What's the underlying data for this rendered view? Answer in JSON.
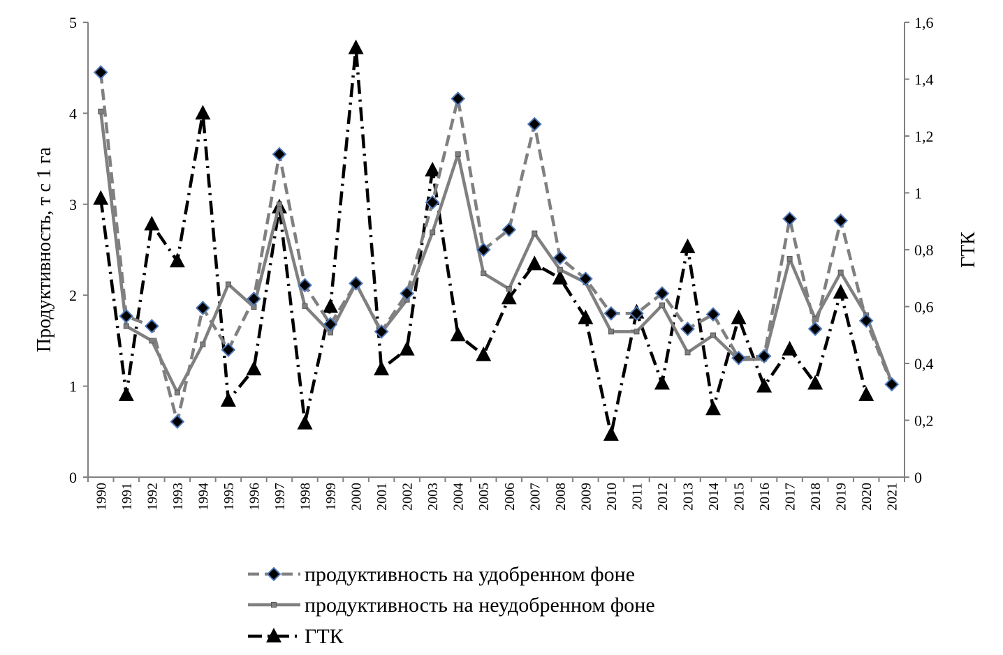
{
  "chart_data": {
    "type": "line",
    "title": "",
    "xlabel": "",
    "ylabel": "Продуктивность, т с 1 га",
    "y2label": "ГТК",
    "ylim": [
      0,
      5
    ],
    "y2lim": [
      0,
      1.6
    ],
    "yticks": [
      "0",
      "1",
      "2",
      "3",
      "4",
      "5"
    ],
    "y2ticks": [
      "0",
      "0,2",
      "0,4",
      "0,6",
      "0,8",
      "1",
      "1,2",
      "1,4",
      "1,6"
    ],
    "grid": false,
    "legend_position": "bottom",
    "categories": [
      "1990",
      "1991",
      "1992",
      "1993",
      "1994",
      "1995",
      "1996",
      "1997",
      "1998",
      "1999",
      "2000",
      "2001",
      "2002",
      "2003",
      "2004",
      "2005",
      "2006",
      "2007",
      "2008",
      "2009",
      "2010",
      "2011",
      "2012",
      "2013",
      "2014",
      "2015",
      "2016",
      "2017",
      "2018",
      "2019",
      "2020",
      "2021"
    ],
    "series": [
      {
        "name": "продуктивность на удобренном фоне",
        "axis": "left",
        "color": "#808080",
        "style": "dashed",
        "marker": "diamond",
        "values": [
          4.45,
          1.77,
          1.66,
          0.61,
          1.86,
          1.4,
          1.96,
          3.55,
          2.11,
          1.68,
          2.13,
          1.6,
          2.02,
          3.02,
          4.16,
          2.5,
          2.72,
          3.88,
          2.41,
          2.18,
          1.8,
          1.8,
          2.02,
          1.63,
          1.79,
          1.31,
          1.33,
          2.84,
          1.63,
          2.82,
          1.72,
          1.02
        ]
      },
      {
        "name": "продуктивность на неудобренном фоне",
        "axis": "left",
        "color": "#808080",
        "style": "solid",
        "marker": "square",
        "values": [
          4.02,
          1.66,
          1.5,
          0.93,
          1.46,
          2.12,
          1.87,
          3.0,
          1.88,
          1.59,
          2.13,
          1.59,
          1.95,
          2.69,
          3.55,
          2.24,
          2.07,
          2.68,
          2.28,
          2.14,
          1.6,
          1.6,
          1.89,
          1.37,
          1.56,
          1.29,
          1.3,
          2.4,
          1.74,
          2.25,
          1.78,
          1.04
        ]
      },
      {
        "name": "ГТК",
        "axis": "right",
        "color": "#000000",
        "style": "dashdot",
        "marker": "triangle",
        "values": [
          0.98,
          0.29,
          0.89,
          0.76,
          1.28,
          0.27,
          0.38,
          0.95,
          0.19,
          0.6,
          1.51,
          0.38,
          0.45,
          1.08,
          0.5,
          0.43,
          0.63,
          0.75,
          0.7,
          0.56,
          0.15,
          0.58,
          0.33,
          0.81,
          0.24,
          0.56,
          0.32,
          0.45,
          0.33,
          0.65,
          0.29,
          null
        ]
      }
    ]
  }
}
